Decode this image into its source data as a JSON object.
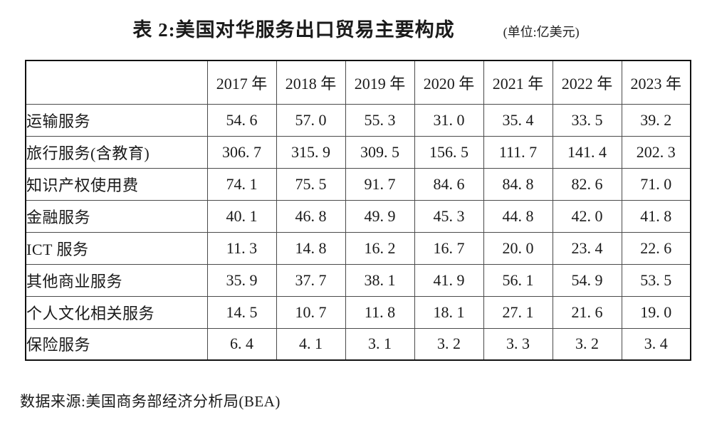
{
  "title": "表 2:美国对华服务出口贸易主要构成",
  "unit_note": "(单位:亿美元)",
  "table": {
    "corner_label": "",
    "year_columns": [
      "2017 年",
      "2018 年",
      "2019 年",
      "2020 年",
      "2021 年",
      "2022 年",
      "2023 年"
    ],
    "rows": [
      {
        "label": "运输服务",
        "values": [
          "54. 6",
          "57. 0",
          "55. 3",
          "31. 0",
          "35. 4",
          "33. 5",
          "39. 2"
        ]
      },
      {
        "label": "旅行服务(含教育)",
        "values": [
          "306. 7",
          "315. 9",
          "309. 5",
          "156. 5",
          "111. 7",
          "141. 4",
          "202. 3"
        ]
      },
      {
        "label": "知识产权使用费",
        "values": [
          "74. 1",
          "75. 5",
          "91. 7",
          "84. 6",
          "84. 8",
          "82. 6",
          "71. 0"
        ]
      },
      {
        "label": "金融服务",
        "values": [
          "40. 1",
          "46. 8",
          "49. 9",
          "45. 3",
          "44. 8",
          "42. 0",
          "41. 8"
        ]
      },
      {
        "label": "ICT 服务",
        "values": [
          "11. 3",
          "14. 8",
          "16. 2",
          "16. 7",
          "20. 0",
          "23. 4",
          "22. 6"
        ]
      },
      {
        "label": "其他商业服务",
        "values": [
          "35. 9",
          "37. 7",
          "38. 1",
          "41. 9",
          "56. 1",
          "54. 9",
          "53. 5"
        ]
      },
      {
        "label": "个人文化相关服务",
        "values": [
          "14. 5",
          "10. 7",
          "11. 8",
          "18. 1",
          "27. 1",
          "21. 6",
          "19. 0"
        ]
      },
      {
        "label": "保险服务",
        "values": [
          "6. 4",
          "4. 1",
          "3. 1",
          "3. 2",
          "3. 3",
          "3. 2",
          "3. 4"
        ]
      }
    ]
  },
  "footer": "数据来源:美国商务部经济分析局(BEA)"
}
